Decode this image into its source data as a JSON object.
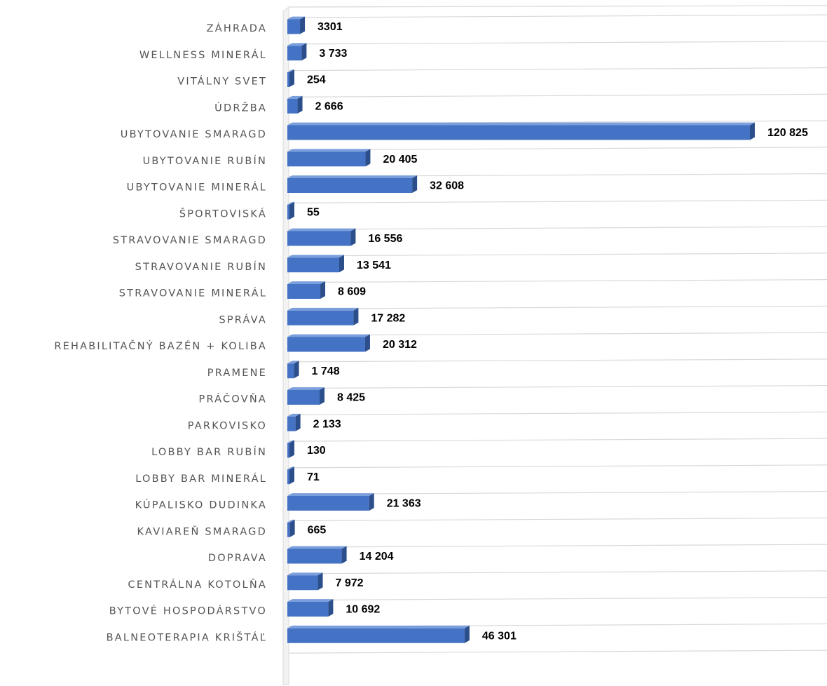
{
  "chart_data": {
    "type": "bar",
    "orientation": "horizontal",
    "grid": true,
    "legend": "none",
    "xlim": [
      0,
      125000
    ],
    "bar_color": "#4472c4",
    "bar_side_color": "#2c4f8c",
    "bar_top_color": "#7b9fdc",
    "grid_color": "#d9d9d9",
    "categories": [
      "ZÁHRADA",
      "WELLNESS MINERÁL",
      "VITÁLNY SVET",
      "ÚDRŽBA",
      "UBYTOVANIE SMARAGD",
      "UBYTOVANIE RUBÍN",
      "UBYTOVANIE MINERÁL",
      "ŠPORTOVISKÁ",
      "STRAVOVANIE SMARAGD",
      "STRAVOVANIE RUBÍN",
      "STRAVOVANIE MINERÁL",
      "SPRÁVA",
      "REHABILITAČNÝ BAZÉN + KOLIBA",
      "PRAMENE",
      "PRÁČOVŇA",
      "PARKOVISKO",
      "LOBBY BAR RUBÍN",
      "LOBBY BAR MINERÁL",
      "KÚPALISKO DUDINKA",
      "KAVIAREŇ SMARAGD",
      "DOPRAVA",
      "CENTRÁLNA KOTOLŇA",
      "BYTOVÉ HOSPODÁRSTVO",
      "BALNEOTERAPIA KRIŠTÁĽ"
    ],
    "values": [
      3301,
      3733,
      254,
      2666,
      120825,
      20405,
      32608,
      55,
      16556,
      13541,
      8609,
      17282,
      20312,
      1748,
      8425,
      2133,
      130,
      71,
      21363,
      665,
      14204,
      7972,
      10692,
      46301
    ],
    "value_labels": [
      "3301",
      "3 733",
      "254",
      "2 666",
      "120 825",
      "20 405",
      "32 608",
      "55",
      "16 556",
      "13 541",
      "8 609",
      "17 282",
      "20 312",
      "1 748",
      "8 425",
      "2 133",
      "130",
      "71",
      "21 363",
      "665",
      "14 204",
      "7 972",
      "10 692",
      "46 301"
    ]
  }
}
